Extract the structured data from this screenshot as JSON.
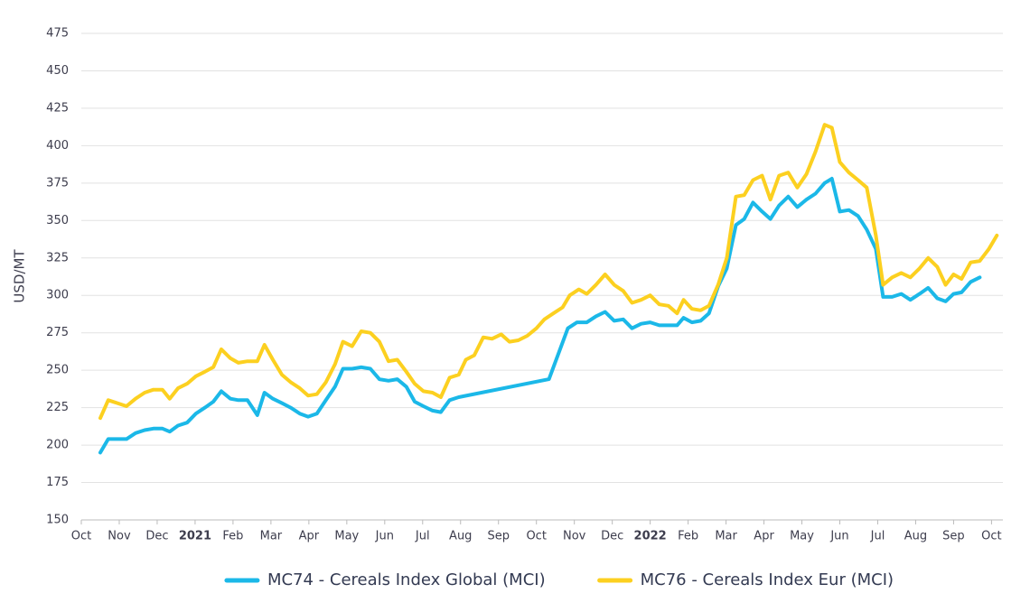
{
  "chart_data": {
    "type": "line",
    "y_label": "USD/MT",
    "ylim": [
      150,
      475
    ],
    "yticks": [
      150,
      175,
      200,
      225,
      250,
      275,
      300,
      325,
      350,
      375,
      400,
      425,
      450,
      475
    ],
    "xlim": [
      0,
      24.3
    ],
    "xticks": [
      {
        "value": 0,
        "label": "Oct"
      },
      {
        "value": 1,
        "label": "Nov"
      },
      {
        "value": 2,
        "label": "Dec"
      },
      {
        "value": 3,
        "label": "2021",
        "bold": true
      },
      {
        "value": 4,
        "label": "Feb"
      },
      {
        "value": 5,
        "label": "Mar"
      },
      {
        "value": 6,
        "label": "Apr"
      },
      {
        "value": 7,
        "label": "May"
      },
      {
        "value": 8,
        "label": "Jun"
      },
      {
        "value": 9,
        "label": "Jul"
      },
      {
        "value": 10,
        "label": "Aug"
      },
      {
        "value": 11,
        "label": "Sep"
      },
      {
        "value": 12,
        "label": "Oct"
      },
      {
        "value": 13,
        "label": "Nov"
      },
      {
        "value": 14,
        "label": "Dec"
      },
      {
        "value": 15,
        "label": "2022",
        "bold": true
      },
      {
        "value": 16,
        "label": "Feb"
      },
      {
        "value": 17,
        "label": "Mar"
      },
      {
        "value": 18,
        "label": "Apr"
      },
      {
        "value": 19,
        "label": "May"
      },
      {
        "value": 20,
        "label": "Jun"
      },
      {
        "value": 21,
        "label": "Jul"
      },
      {
        "value": 22,
        "label": "Aug"
      },
      {
        "value": 23,
        "label": "Sep"
      },
      {
        "value": 24,
        "label": "Oct"
      }
    ],
    "grid": true,
    "legend": "bottom",
    "series": [
      {
        "name": "MC74 - Cereals Index Global (MCI)",
        "color": "#1bb8e8",
        "x": [
          0.5,
          0.71,
          0.95,
          1.19,
          1.43,
          1.67,
          1.9,
          2.14,
          2.33,
          2.55,
          2.79,
          3.02,
          3.26,
          3.48,
          3.69,
          3.93,
          4.14,
          4.38,
          4.64,
          4.83,
          5.05,
          5.29,
          5.52,
          5.76,
          5.98,
          6.21,
          6.45,
          6.69,
          6.9,
          7.14,
          7.38,
          7.62,
          7.86,
          8.1,
          8.33,
          8.57,
          8.79,
          9.02,
          9.26,
          9.48,
          9.71,
          9.95,
          12.33,
          12.83,
          13.07,
          13.33,
          13.57,
          13.81,
          14.05,
          14.29,
          14.52,
          14.76,
          15.0,
          15.24,
          15.48,
          15.71,
          15.88,
          16.1,
          16.33,
          16.55,
          16.79,
          17.02,
          17.26,
          17.48,
          17.71,
          17.95,
          18.17,
          18.4,
          18.64,
          18.88,
          19.12,
          19.36,
          19.6,
          19.79,
          20.0,
          20.24,
          20.48,
          20.71,
          20.95,
          21.14,
          21.38,
          21.62,
          21.86,
          22.1,
          22.33,
          22.57,
          22.79,
          23.0,
          23.21,
          23.45,
          23.69
        ],
        "values": [
          195,
          204,
          204,
          204,
          208,
          210,
          211,
          211,
          209,
          213,
          215,
          221,
          225,
          229,
          236,
          231,
          230,
          230,
          220,
          235,
          231,
          228,
          225,
          221,
          219,
          221,
          230,
          239,
          251,
          251,
          252,
          251,
          244,
          243,
          244,
          239,
          229,
          226,
          223,
          222,
          230,
          232,
          244,
          278,
          282,
          282,
          286,
          289,
          283,
          284,
          278,
          281,
          282,
          280,
          280,
          280,
          285,
          282,
          283,
          288,
          306,
          318,
          347,
          351,
          362,
          356,
          351,
          360,
          366,
          359,
          364,
          368,
          375,
          378,
          356,
          357,
          353,
          344,
          331,
          299,
          299,
          301,
          297,
          301,
          305,
          298,
          296,
          301,
          302,
          309,
          312
        ]
      },
      {
        "name": "MC76 - Cereals Index Eur (MCI)",
        "color": "#fcd020",
        "x": [
          0.5,
          0.71,
          0.95,
          1.19,
          1.43,
          1.67,
          1.9,
          2.14,
          2.33,
          2.55,
          2.79,
          3.02,
          3.26,
          3.48,
          3.69,
          3.93,
          4.14,
          4.38,
          4.64,
          4.83,
          5.05,
          5.29,
          5.52,
          5.76,
          5.98,
          6.21,
          6.45,
          6.69,
          6.9,
          7.14,
          7.38,
          7.62,
          7.86,
          8.1,
          8.33,
          8.57,
          8.79,
          9.02,
          9.26,
          9.48,
          9.71,
          9.95,
          10.14,
          10.36,
          10.6,
          10.83,
          11.07,
          11.29,
          11.52,
          11.76,
          12.0,
          12.21,
          12.45,
          12.69,
          12.88,
          13.12,
          13.33,
          13.57,
          13.81,
          14.05,
          14.29,
          14.52,
          14.76,
          15.0,
          15.24,
          15.48,
          15.71,
          15.88,
          16.1,
          16.33,
          16.55,
          16.79,
          17.02,
          17.26,
          17.48,
          17.71,
          17.95,
          18.17,
          18.4,
          18.64,
          18.88,
          19.12,
          19.36,
          19.6,
          19.79,
          20.0,
          20.24,
          20.48,
          20.71,
          20.95,
          21.14,
          21.38,
          21.62,
          21.86,
          22.1,
          22.33,
          22.57,
          22.79,
          23.0,
          23.21,
          23.45,
          23.69,
          23.93,
          24.14
        ],
        "values": [
          218,
          230,
          228,
          226,
          231,
          235,
          237,
          237,
          231,
          238,
          241,
          246,
          249,
          252,
          264,
          258,
          255,
          256,
          256,
          267,
          257,
          247,
          242,
          238,
          233,
          234,
          242,
          254,
          269,
          266,
          276,
          275,
          269,
          256,
          257,
          249,
          241,
          236,
          235,
          232,
          245,
          247,
          257,
          260,
          272,
          271,
          274,
          269,
          270,
          273,
          278,
          284,
          288,
          292,
          300,
          304,
          301,
          307,
          314,
          307,
          303,
          295,
          297,
          300,
          294,
          293,
          288,
          297,
          291,
          290,
          293,
          307,
          325,
          366,
          367,
          377,
          380,
          364,
          380,
          382,
          372,
          381,
          396,
          414,
          412,
          389,
          382,
          377,
          372,
          340,
          307,
          312,
          315,
          312,
          318,
          325,
          319,
          307,
          314,
          311,
          322,
          323,
          331,
          340
        ]
      }
    ]
  }
}
